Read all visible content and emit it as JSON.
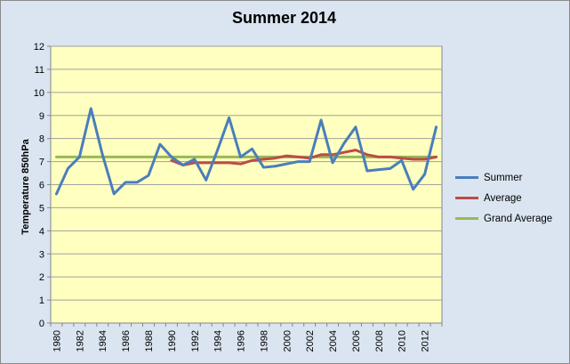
{
  "chart_data": {
    "type": "line",
    "title": "Summer 2014",
    "xlabel": "",
    "ylabel": "Temperature 850hPa",
    "ylim": [
      0,
      12
    ],
    "yticks": [
      0,
      1,
      2,
      3,
      4,
      5,
      6,
      7,
      8,
      9,
      10,
      11,
      12
    ],
    "xticks": [
      1980,
      1982,
      1984,
      1986,
      1988,
      1990,
      1992,
      1994,
      1996,
      1998,
      2000,
      2002,
      2004,
      2006,
      2008,
      2010,
      2012
    ],
    "xlim": [
      1980,
      2013
    ],
    "grid": true,
    "legend_position": "right",
    "colors": {
      "plot_bg": "#ffffc0",
      "chart_bg": "#dbe5f1",
      "grid": "#a0a0a0"
    },
    "series": [
      {
        "name": "Summer",
        "color": "#4a7ebb",
        "x": [
          1980,
          1981,
          1982,
          1983,
          1984,
          1985,
          1986,
          1987,
          1988,
          1989,
          1990,
          1991,
          1992,
          1993,
          1994,
          1995,
          1996,
          1997,
          1998,
          1999,
          2000,
          2001,
          2002,
          2003,
          2004,
          2005,
          2006,
          2007,
          2008,
          2009,
          2010,
          2011,
          2012,
          2013
        ],
        "values": [
          5.6,
          6.7,
          7.2,
          9.3,
          7.3,
          5.6,
          6.1,
          6.1,
          6.4,
          7.75,
          7.2,
          6.85,
          7.1,
          6.2,
          7.5,
          8.9,
          7.2,
          7.55,
          6.75,
          6.8,
          6.9,
          7.0,
          7.0,
          8.8,
          6.95,
          7.8,
          8.5,
          6.6,
          6.65,
          6.7,
          7.05,
          5.8,
          6.45,
          8.5
        ]
      },
      {
        "name": "Average",
        "color": "#be4b48",
        "x": [
          1990,
          1991,
          1992,
          1993,
          1994,
          1995,
          1996,
          1997,
          1998,
          1999,
          2000,
          2001,
          2002,
          2003,
          2004,
          2005,
          2006,
          2007,
          2008,
          2009,
          2010,
          2011,
          2012,
          2013
        ],
        "values": [
          7.05,
          6.85,
          6.95,
          6.95,
          6.95,
          6.95,
          6.9,
          7.05,
          7.1,
          7.15,
          7.25,
          7.2,
          7.15,
          7.3,
          7.3,
          7.4,
          7.5,
          7.3,
          7.2,
          7.2,
          7.15,
          7.1,
          7.1,
          7.2
        ]
      },
      {
        "name": "Grand Average",
        "color": "#98b954",
        "x": [
          1980,
          2013
        ],
        "values": [
          7.2,
          7.2
        ]
      }
    ]
  }
}
